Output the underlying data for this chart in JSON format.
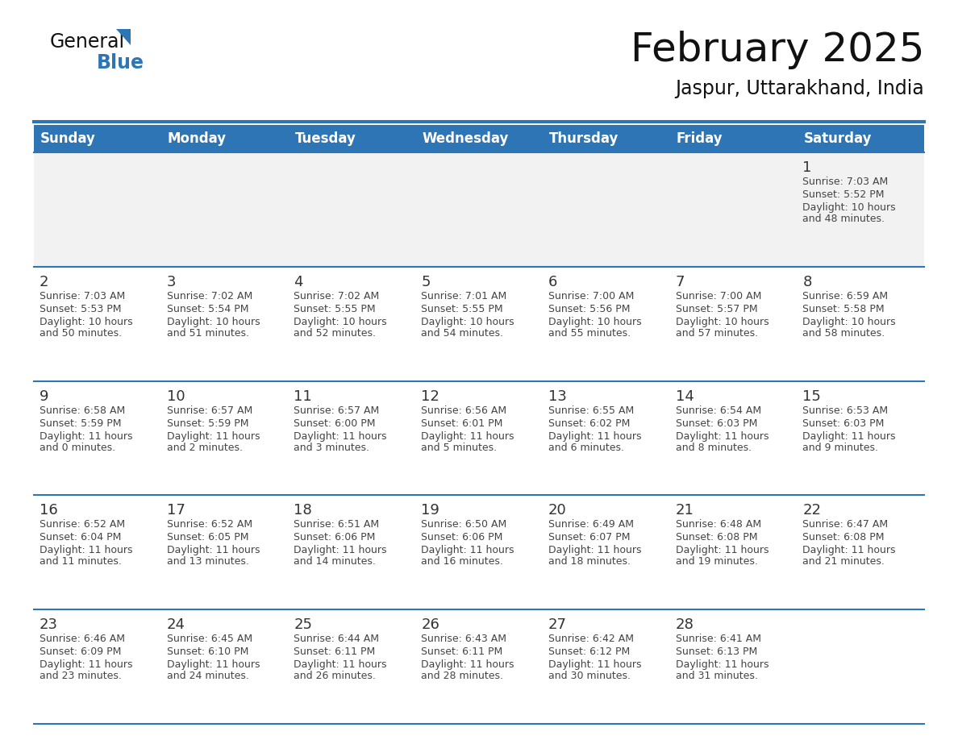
{
  "title": "February 2025",
  "subtitle": "Jaspur, Uttarakhand, India",
  "days_of_week": [
    "Sunday",
    "Monday",
    "Tuesday",
    "Wednesday",
    "Thursday",
    "Friday",
    "Saturday"
  ],
  "header_bg": "#2E75B6",
  "header_text_color": "#FFFFFF",
  "cell_bg_white": "#FFFFFF",
  "cell_bg_gray": "#F2F2F2",
  "border_color": "#2E75B6",
  "day_num_color": "#333333",
  "info_color": "#444444",
  "title_color": "#111111",
  "subtitle_color": "#111111",
  "logo_general_color": "#111111",
  "logo_blue_color": "#2E75B6",
  "calendar_data": [
    [
      null,
      null,
      null,
      null,
      null,
      null,
      {
        "day": 1,
        "sunrise": "7:03 AM",
        "sunset": "5:52 PM",
        "daylight": "10 hours and 48 minutes."
      }
    ],
    [
      {
        "day": 2,
        "sunrise": "7:03 AM",
        "sunset": "5:53 PM",
        "daylight": "10 hours and 50 minutes."
      },
      {
        "day": 3,
        "sunrise": "7:02 AM",
        "sunset": "5:54 PM",
        "daylight": "10 hours and 51 minutes."
      },
      {
        "day": 4,
        "sunrise": "7:02 AM",
        "sunset": "5:55 PM",
        "daylight": "10 hours and 52 minutes."
      },
      {
        "day": 5,
        "sunrise": "7:01 AM",
        "sunset": "5:55 PM",
        "daylight": "10 hours and 54 minutes."
      },
      {
        "day": 6,
        "sunrise": "7:00 AM",
        "sunset": "5:56 PM",
        "daylight": "10 hours and 55 minutes."
      },
      {
        "day": 7,
        "sunrise": "7:00 AM",
        "sunset": "5:57 PM",
        "daylight": "10 hours and 57 minutes."
      },
      {
        "day": 8,
        "sunrise": "6:59 AM",
        "sunset": "5:58 PM",
        "daylight": "10 hours and 58 minutes."
      }
    ],
    [
      {
        "day": 9,
        "sunrise": "6:58 AM",
        "sunset": "5:59 PM",
        "daylight": "11 hours and 0 minutes."
      },
      {
        "day": 10,
        "sunrise": "6:57 AM",
        "sunset": "5:59 PM",
        "daylight": "11 hours and 2 minutes."
      },
      {
        "day": 11,
        "sunrise": "6:57 AM",
        "sunset": "6:00 PM",
        "daylight": "11 hours and 3 minutes."
      },
      {
        "day": 12,
        "sunrise": "6:56 AM",
        "sunset": "6:01 PM",
        "daylight": "11 hours and 5 minutes."
      },
      {
        "day": 13,
        "sunrise": "6:55 AM",
        "sunset": "6:02 PM",
        "daylight": "11 hours and 6 minutes."
      },
      {
        "day": 14,
        "sunrise": "6:54 AM",
        "sunset": "6:03 PM",
        "daylight": "11 hours and 8 minutes."
      },
      {
        "day": 15,
        "sunrise": "6:53 AM",
        "sunset": "6:03 PM",
        "daylight": "11 hours and 9 minutes."
      }
    ],
    [
      {
        "day": 16,
        "sunrise": "6:52 AM",
        "sunset": "6:04 PM",
        "daylight": "11 hours and 11 minutes."
      },
      {
        "day": 17,
        "sunrise": "6:52 AM",
        "sunset": "6:05 PM",
        "daylight": "11 hours and 13 minutes."
      },
      {
        "day": 18,
        "sunrise": "6:51 AM",
        "sunset": "6:06 PM",
        "daylight": "11 hours and 14 minutes."
      },
      {
        "day": 19,
        "sunrise": "6:50 AM",
        "sunset": "6:06 PM",
        "daylight": "11 hours and 16 minutes."
      },
      {
        "day": 20,
        "sunrise": "6:49 AM",
        "sunset": "6:07 PM",
        "daylight": "11 hours and 18 minutes."
      },
      {
        "day": 21,
        "sunrise": "6:48 AM",
        "sunset": "6:08 PM",
        "daylight": "11 hours and 19 minutes."
      },
      {
        "day": 22,
        "sunrise": "6:47 AM",
        "sunset": "6:08 PM",
        "daylight": "11 hours and 21 minutes."
      }
    ],
    [
      {
        "day": 23,
        "sunrise": "6:46 AM",
        "sunset": "6:09 PM",
        "daylight": "11 hours and 23 minutes."
      },
      {
        "day": 24,
        "sunrise": "6:45 AM",
        "sunset": "6:10 PM",
        "daylight": "11 hours and 24 minutes."
      },
      {
        "day": 25,
        "sunrise": "6:44 AM",
        "sunset": "6:11 PM",
        "daylight": "11 hours and 26 minutes."
      },
      {
        "day": 26,
        "sunrise": "6:43 AM",
        "sunset": "6:11 PM",
        "daylight": "11 hours and 28 minutes."
      },
      {
        "day": 27,
        "sunrise": "6:42 AM",
        "sunset": "6:12 PM",
        "daylight": "11 hours and 30 minutes."
      },
      {
        "day": 28,
        "sunrise": "6:41 AM",
        "sunset": "6:13 PM",
        "daylight": "11 hours and 31 minutes."
      },
      null
    ]
  ]
}
